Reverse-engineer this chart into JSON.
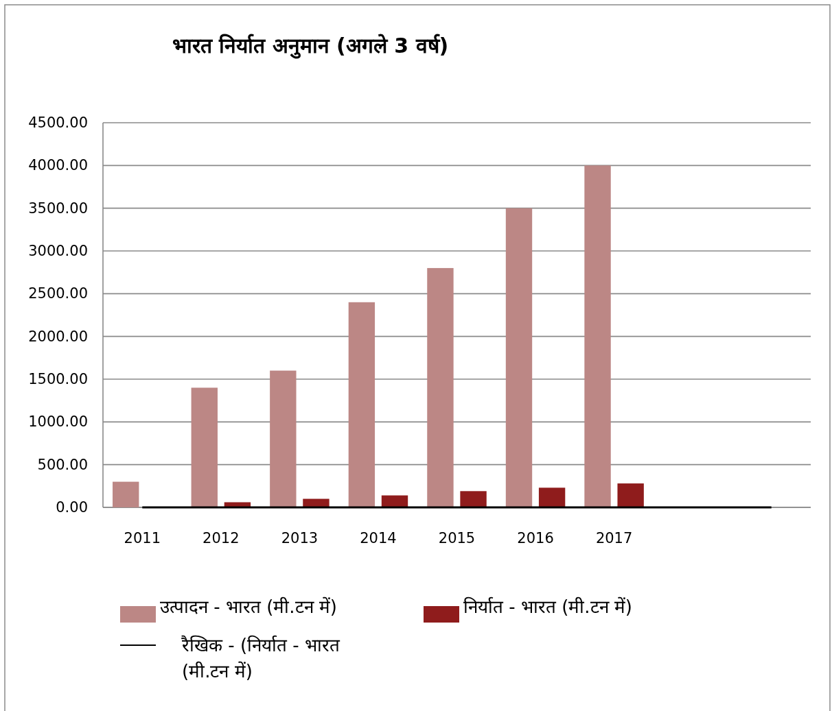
{
  "chart_data": {
    "type": "bar",
    "title": "भारत निर्यात अनुमान (अगले 3 वर्ष)",
    "categories": [
      "2011",
      "2012",
      "2013",
      "2014",
      "2015",
      "2016",
      "2017",
      null,
      null
    ],
    "series": [
      {
        "name": "उत्पादन - भारत (मी.टन में)",
        "color": "#bc8785",
        "values": [
          300,
          1400,
          1600,
          2400,
          2800,
          3500,
          4000,
          null,
          null
        ]
      },
      {
        "name": "निर्यात - भारत (मी.टन में)",
        "color": "#8f1c1c",
        "values": [
          null,
          60,
          100,
          140,
          190,
          230,
          280,
          null,
          null
        ]
      },
      {
        "name": "रैखिक - (निर्यात - भारत (मी.टन में)",
        "type": "line",
        "color": "#000000",
        "values": [
          0,
          0,
          0,
          0,
          0,
          0,
          0,
          0,
          0
        ]
      }
    ],
    "ylim": [
      0,
      4500
    ],
    "yticks": [
      {
        "value": 0,
        "label": "0.00"
      },
      {
        "value": 500,
        "label": "500.00"
      },
      {
        "value": 1000,
        "label": "1000.00"
      },
      {
        "value": 1500,
        "label": "1500.00"
      },
      {
        "value": 2000,
        "label": "2000.00"
      },
      {
        "value": 2500,
        "label": "2500.00"
      },
      {
        "value": 3000,
        "label": "3000.00"
      },
      {
        "value": 3500,
        "label": "3500.00"
      },
      {
        "value": 4000,
        "label": "4000.00"
      },
      {
        "value": 4500,
        "label": "4500.00"
      }
    ],
    "grid": "y",
    "legend": "bottom"
  }
}
